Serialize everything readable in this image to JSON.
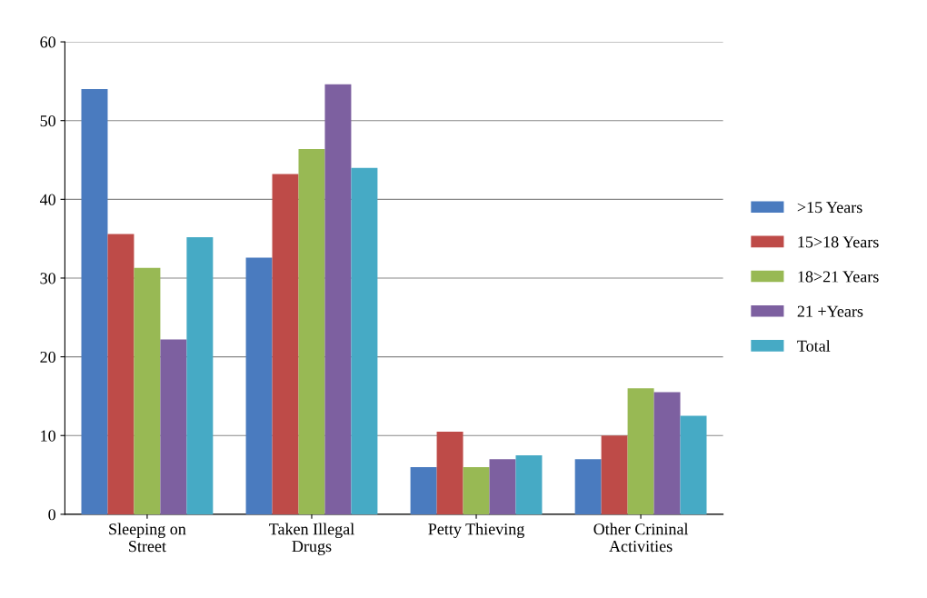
{
  "chart_data": {
    "type": "bar",
    "categories": [
      "Sleeping on\nStreet",
      "Taken Illegal\nDrugs",
      "Petty Thieving",
      "Other Crininal\nActivities"
    ],
    "series": [
      {
        "name": ">15 Years",
        "color": "#4a7bbf",
        "values": [
          54,
          32.6,
          6,
          7
        ]
      },
      {
        "name": "15>18 Years",
        "color": "#be4b48",
        "values": [
          35.6,
          43.2,
          10.5,
          10
        ]
      },
      {
        "name": "18>21 Years",
        "color": "#98b954",
        "values": [
          31.3,
          46.4,
          6,
          16
        ]
      },
      {
        "name": "21 +Years",
        "color": "#7d60a0",
        "values": [
          22.2,
          54.6,
          7,
          15.5
        ]
      },
      {
        "name": "Total",
        "color": "#46aac5",
        "values": [
          35.2,
          44,
          7.5,
          12.5
        ]
      }
    ],
    "ylim": [
      0,
      60
    ],
    "yticks": [
      0,
      10,
      20,
      30,
      40,
      50,
      60
    ],
    "grid": "y",
    "legend": "right"
  }
}
